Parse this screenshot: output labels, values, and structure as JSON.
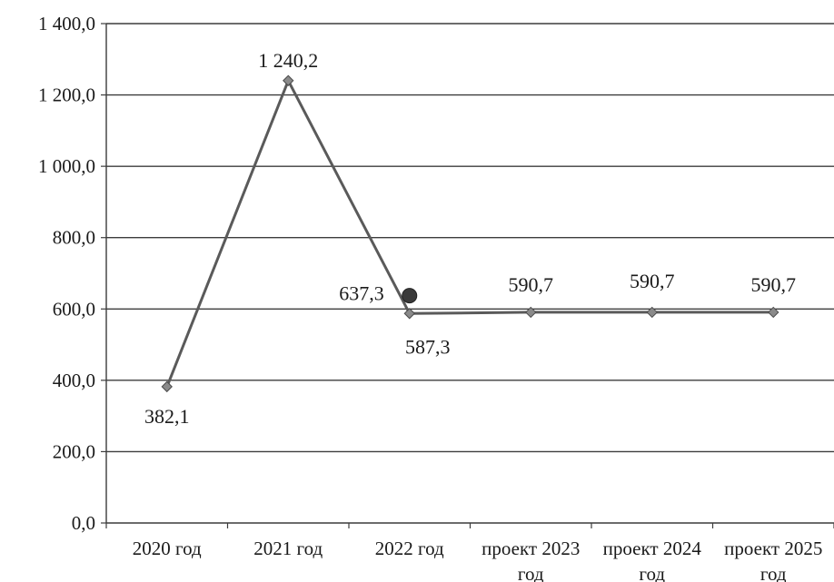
{
  "chart_data": {
    "type": "line",
    "categories": [
      [
        "2020 год"
      ],
      [
        "2021 год"
      ],
      [
        "2022 год"
      ],
      [
        "проект 2023",
        "год"
      ],
      [
        "проект 2024",
        "год"
      ],
      [
        "проект 2025",
        "год"
      ]
    ],
    "series": [
      {
        "values": [
          382.1,
          1240.2,
          587.3,
          590.7,
          590.7,
          590.7
        ],
        "labels": [
          "382,1",
          "1 240,2",
          "587,3",
          "590,7",
          "590,7",
          "590,7"
        ],
        "color": "#5a5a5a",
        "marker": "diamond"
      }
    ],
    "extra_point": {
      "category_index": 2,
      "value": 637.3,
      "label": "637,3",
      "color": "#3a3a3a",
      "marker": "circle"
    },
    "ylim": [
      0,
      1400
    ],
    "yticks": [
      0,
      200,
      400,
      600,
      800,
      1000,
      1200,
      1400
    ],
    "ytick_labels": [
      "0,0",
      "200,0",
      "400,0",
      "600,0",
      "800,0",
      "1 000,0",
      "1 200,0",
      "1 400,0"
    ],
    "grid": true,
    "legend": "none",
    "title": "",
    "xlabel": "",
    "ylabel": ""
  }
}
